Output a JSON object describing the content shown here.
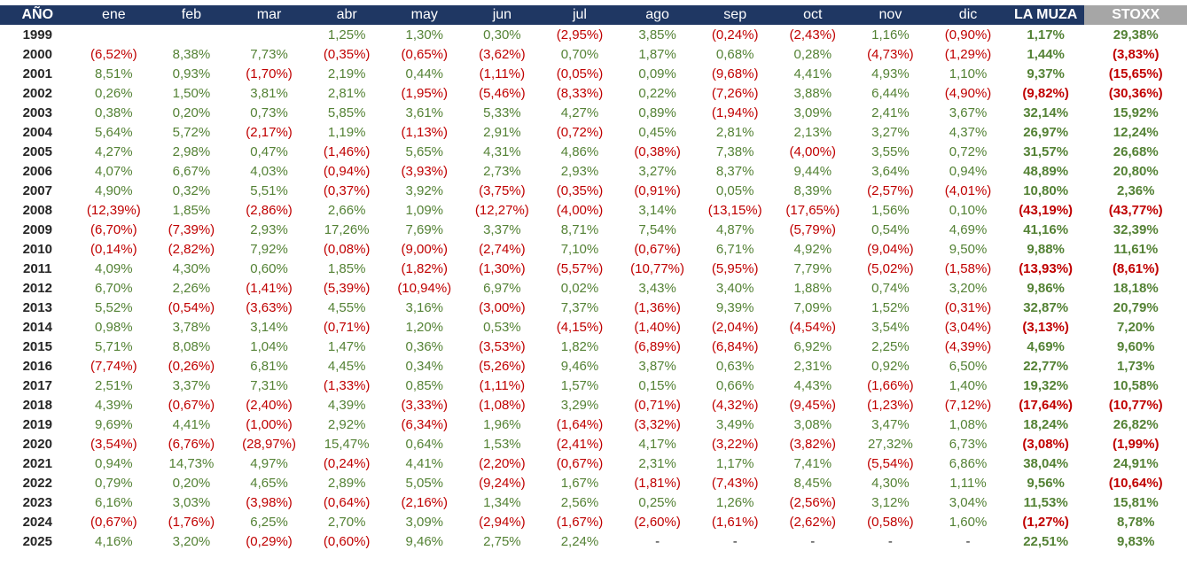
{
  "headers": [
    "AÑO",
    "ene",
    "feb",
    "mar",
    "abr",
    "may",
    "jun",
    "jul",
    "ago",
    "sep",
    "oct",
    "nov",
    "dic",
    "LA MUZA",
    "STOXX"
  ],
  "rows": [
    [
      "1999",
      "",
      "",
      "",
      "1,25%",
      "1,30%",
      "0,30%",
      "(2,95%)",
      "3,85%",
      "(0,24%)",
      "(2,43%)",
      "1,16%",
      "(0,90%)",
      "1,17%",
      "29,38%"
    ],
    [
      "2000",
      "(6,52%)",
      "8,38%",
      "7,73%",
      "(0,35%)",
      "(0,65%)",
      "(3,62%)",
      "0,70%",
      "1,87%",
      "0,68%",
      "0,28%",
      "(4,73%)",
      "(1,29%)",
      "1,44%",
      "(3,83%)"
    ],
    [
      "2001",
      "8,51%",
      "0,93%",
      "(1,70%)",
      "2,19%",
      "0,44%",
      "(1,11%)",
      "(0,05%)",
      "0,09%",
      "(9,68%)",
      "4,41%",
      "4,93%",
      "1,10%",
      "9,37%",
      "(15,65%)"
    ],
    [
      "2002",
      "0,26%",
      "1,50%",
      "3,81%",
      "2,81%",
      "(1,95%)",
      "(5,46%)",
      "(8,33%)",
      "0,22%",
      "(7,26%)",
      "3,88%",
      "6,44%",
      "(4,90%)",
      "(9,82%)",
      "(30,36%)"
    ],
    [
      "2003",
      "0,38%",
      "0,20%",
      "0,73%",
      "5,85%",
      "3,61%",
      "5,33%",
      "4,27%",
      "0,89%",
      "(1,94%)",
      "3,09%",
      "2,41%",
      "3,67%",
      "32,14%",
      "15,92%"
    ],
    [
      "2004",
      "5,64%",
      "5,72%",
      "(2,17%)",
      "1,19%",
      "(1,13%)",
      "2,91%",
      "(0,72%)",
      "0,45%",
      "2,81%",
      "2,13%",
      "3,27%",
      "4,37%",
      "26,97%",
      "12,24%"
    ],
    [
      "2005",
      "4,27%",
      "2,98%",
      "0,47%",
      "(1,46%)",
      "5,65%",
      "4,31%",
      "4,86%",
      "(0,38%)",
      "7,38%",
      "(4,00%)",
      "3,55%",
      "0,72%",
      "31,57%",
      "26,68%"
    ],
    [
      "2006",
      "4,07%",
      "6,67%",
      "4,03%",
      "(0,94%)",
      "(3,93%)",
      "2,73%",
      "2,93%",
      "3,27%",
      "8,37%",
      "9,44%",
      "3,64%",
      "0,94%",
      "48,89%",
      "20,80%"
    ],
    [
      "2007",
      "4,90%",
      "0,32%",
      "5,51%",
      "(0,37%)",
      "3,92%",
      "(3,75%)",
      "(0,35%)",
      "(0,91%)",
      "0,05%",
      "8,39%",
      "(2,57%)",
      "(4,01%)",
      "10,80%",
      "2,36%"
    ],
    [
      "2008",
      "(12,39%)",
      "1,85%",
      "(2,86%)",
      "2,66%",
      "1,09%",
      "(12,27%)",
      "(4,00%)",
      "3,14%",
      "(13,15%)",
      "(17,65%)",
      "1,56%",
      "0,10%",
      "(43,19%)",
      "(43,77%)"
    ],
    [
      "2009",
      "(6,70%)",
      "(7,39%)",
      "2,93%",
      "17,26%",
      "7,69%",
      "3,37%",
      "8,71%",
      "7,54%",
      "4,87%",
      "(5,79%)",
      "0,54%",
      "4,69%",
      "41,16%",
      "32,39%"
    ],
    [
      "2010",
      "(0,14%)",
      "(2,82%)",
      "7,92%",
      "(0,08%)",
      "(9,00%)",
      "(2,74%)",
      "7,10%",
      "(0,67%)",
      "6,71%",
      "4,92%",
      "(9,04%)",
      "9,50%",
      "9,88%",
      "11,61%"
    ],
    [
      "2011",
      "4,09%",
      "4,30%",
      "0,60%",
      "1,85%",
      "(1,82%)",
      "(1,30%)",
      "(5,57%)",
      "(10,77%)",
      "(5,95%)",
      "7,79%",
      "(5,02%)",
      "(1,58%)",
      "(13,93%)",
      "(8,61%)"
    ],
    [
      "2012",
      "6,70%",
      "2,26%",
      "(1,41%)",
      "(5,39%)",
      "(10,94%)",
      "6,97%",
      "0,02%",
      "3,43%",
      "3,40%",
      "1,88%",
      "0,74%",
      "3,20%",
      "9,86%",
      "18,18%"
    ],
    [
      "2013",
      "5,52%",
      "(0,54%)",
      "(3,63%)",
      "4,55%",
      "3,16%",
      "(3,00%)",
      "7,37%",
      "(1,36%)",
      "9,39%",
      "7,09%",
      "1,52%",
      "(0,31%)",
      "32,87%",
      "20,79%"
    ],
    [
      "2014",
      "0,98%",
      "3,78%",
      "3,14%",
      "(0,71%)",
      "1,20%",
      "0,53%",
      "(4,15%)",
      "(1,40%)",
      "(2,04%)",
      "(4,54%)",
      "3,54%",
      "(3,04%)",
      "(3,13%)",
      "7,20%"
    ],
    [
      "2015",
      "5,71%",
      "8,08%",
      "1,04%",
      "1,47%",
      "0,36%",
      "(3,53%)",
      "1,82%",
      "(6,89%)",
      "(6,84%)",
      "6,92%",
      "2,25%",
      "(4,39%)",
      "4,69%",
      "9,60%"
    ],
    [
      "2016",
      "(7,74%)",
      "(0,26%)",
      "6,81%",
      "4,45%",
      "0,34%",
      "(5,26%)",
      "9,46%",
      "3,87%",
      "0,63%",
      "2,31%",
      "0,92%",
      "6,50%",
      "22,77%",
      "1,73%"
    ],
    [
      "2017",
      "2,51%",
      "3,37%",
      "7,31%",
      "(1,33%)",
      "0,85%",
      "(1,11%)",
      "1,57%",
      "0,15%",
      "0,66%",
      "4,43%",
      "(1,66%)",
      "1,40%",
      "19,32%",
      "10,58%"
    ],
    [
      "2018",
      "4,39%",
      "(0,67%)",
      "(2,40%)",
      "4,39%",
      "(3,33%)",
      "(1,08%)",
      "3,29%",
      "(0,71%)",
      "(4,32%)",
      "(9,45%)",
      "(1,23%)",
      "(7,12%)",
      "(17,64%)",
      "(10,77%)"
    ],
    [
      "2019",
      "9,69%",
      "4,41%",
      "(1,00%)",
      "2,92%",
      "(6,34%)",
      "1,96%",
      "(1,64%)",
      "(3,32%)",
      "3,49%",
      "3,08%",
      "3,47%",
      "1,08%",
      "18,24%",
      "26,82%"
    ],
    [
      "2020",
      "(3,54%)",
      "(6,76%)",
      "(28,97%)",
      "15,47%",
      "0,64%",
      "1,53%",
      "(2,41%)",
      "4,17%",
      "(3,22%)",
      "(3,82%)",
      "27,32%",
      "6,73%",
      "(3,08%)",
      "(1,99%)"
    ],
    [
      "2021",
      "0,94%",
      "14,73%",
      "4,97%",
      "(0,24%)",
      "4,41%",
      "(2,20%)",
      "(0,67%)",
      "2,31%",
      "1,17%",
      "7,41%",
      "(5,54%)",
      "6,86%",
      "38,04%",
      "24,91%"
    ],
    [
      "2022",
      "0,79%",
      "0,20%",
      "4,65%",
      "2,89%",
      "5,05%",
      "(9,24%)",
      "1,67%",
      "(1,81%)",
      "(7,43%)",
      "8,45%",
      "4,30%",
      "1,11%",
      "9,56%",
      "(10,64%)"
    ],
    [
      "2023",
      "6,16%",
      "3,03%",
      "(3,98%)",
      "(0,64%)",
      "(2,16%)",
      "1,34%",
      "2,56%",
      "0,25%",
      "1,26%",
      "(2,56%)",
      "3,12%",
      "3,04%",
      "11,53%",
      "15,81%"
    ],
    [
      "2024",
      "(0,67%)",
      "(1,76%)",
      "6,25%",
      "2,70%",
      "3,09%",
      "(2,94%)",
      "(1,67%)",
      "(2,60%)",
      "(1,61%)",
      "(2,62%)",
      "(0,58%)",
      "1,60%",
      "(1,27%)",
      "8,78%"
    ],
    [
      "2025",
      "4,16%",
      "3,20%",
      "(0,29%)",
      "(0,60%)",
      "9,46%",
      "2,75%",
      "2,24%",
      "-",
      "-",
      "-",
      "-",
      "-",
      "22,51%",
      "9,83%"
    ]
  ]
}
